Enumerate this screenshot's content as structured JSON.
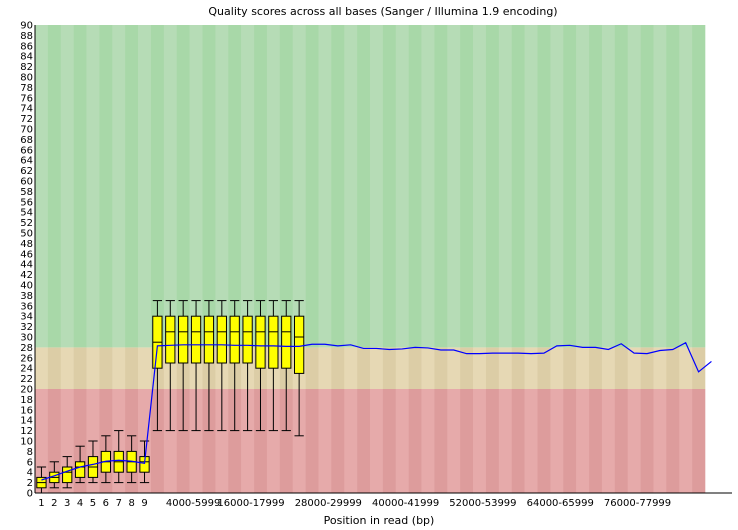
{
  "chart_data": {
    "type": "box",
    "title": "Quality scores across all bases (Sanger / Illumina 1.9 encoding)",
    "xlabel": "Position in read (bp)",
    "ylabel": "",
    "ylim": [
      0,
      90
    ],
    "y_ticks": [
      0,
      2,
      4,
      6,
      8,
      10,
      12,
      14,
      16,
      18,
      20,
      22,
      24,
      26,
      28,
      30,
      32,
      34,
      36,
      38,
      40,
      42,
      44,
      46,
      48,
      50,
      52,
      54,
      56,
      58,
      60,
      62,
      64,
      66,
      68,
      70,
      72,
      74,
      76,
      78,
      80,
      82,
      84,
      86,
      88,
      90
    ],
    "x_tick_labels": [
      "1",
      "2",
      "3",
      "4",
      "5",
      "6",
      "7",
      "8",
      "9",
      "4000-5999",
      "16000-17999",
      "28000-29999",
      "40000-41999",
      "52000-53999",
      "64000-65999",
      "76000-77999"
    ],
    "x_tick_slots": [
      0,
      1,
      2,
      3,
      4,
      5,
      6,
      7,
      8,
      10,
      14,
      20,
      26,
      32,
      38,
      44
    ],
    "n_positions": 52,
    "quality_bands": [
      {
        "from": 0,
        "to": 20,
        "label": "poor",
        "color_a": "#e6aaaa",
        "color_b": "#dd9c9c"
      },
      {
        "from": 20,
        "to": 28,
        "label": "reasonable",
        "color_a": "#e6d8b4",
        "color_b": "#dccda6"
      },
      {
        "from": 28,
        "to": 90,
        "label": "good",
        "color_a": "#b6dcb6",
        "color_b": "#a8d8a8"
      }
    ],
    "colors": {
      "box": "#ffff00",
      "median": "#000000",
      "mean_line": "#0000ff",
      "whisker": "#000000"
    },
    "boxes": [
      {
        "pos": 0,
        "low": 0,
        "q1": 1,
        "median": 2,
        "q3": 3,
        "high": 5
      },
      {
        "pos": 1,
        "low": 1,
        "q1": 2,
        "median": 3,
        "q3": 4,
        "high": 6
      },
      {
        "pos": 2,
        "low": 1,
        "q1": 2,
        "median": 4,
        "q3": 5,
        "high": 7
      },
      {
        "pos": 3,
        "low": 2,
        "q1": 3,
        "median": 5,
        "q3": 6,
        "high": 9
      },
      {
        "pos": 4,
        "low": 2,
        "q1": 3,
        "median": 5,
        "q3": 7,
        "high": 10
      },
      {
        "pos": 5,
        "low": 2,
        "q1": 4,
        "median": 6,
        "q3": 8,
        "high": 11
      },
      {
        "pos": 6,
        "low": 2,
        "q1": 4,
        "median": 6,
        "q3": 8,
        "high": 12
      },
      {
        "pos": 7,
        "low": 2,
        "q1": 4,
        "median": 6,
        "q3": 8,
        "high": 11
      },
      {
        "pos": 8,
        "low": 2,
        "q1": 4,
        "median": 6,
        "q3": 7,
        "high": 10
      },
      {
        "pos": 9,
        "low": 12,
        "q1": 24,
        "median": 29,
        "q3": 34,
        "high": 37
      },
      {
        "pos": 10,
        "low": 12,
        "q1": 25,
        "median": 31,
        "q3": 34,
        "high": 37
      },
      {
        "pos": 11,
        "low": 12,
        "q1": 25,
        "median": 31,
        "q3": 34,
        "high": 37
      },
      {
        "pos": 12,
        "low": 12,
        "q1": 25,
        "median": 31,
        "q3": 34,
        "high": 37
      },
      {
        "pos": 13,
        "low": 12,
        "q1": 25,
        "median": 31,
        "q3": 34,
        "high": 37
      },
      {
        "pos": 14,
        "low": 12,
        "q1": 25,
        "median": 31,
        "q3": 34,
        "high": 37
      },
      {
        "pos": 15,
        "low": 12,
        "q1": 25,
        "median": 31,
        "q3": 34,
        "high": 37
      },
      {
        "pos": 16,
        "low": 12,
        "q1": 25,
        "median": 31,
        "q3": 34,
        "high": 37
      },
      {
        "pos": 17,
        "low": 12,
        "q1": 24,
        "median": 31,
        "q3": 34,
        "high": 37
      },
      {
        "pos": 18,
        "low": 12,
        "q1": 24,
        "median": 31,
        "q3": 34,
        "high": 37
      },
      {
        "pos": 19,
        "low": 12,
        "q1": 24,
        "median": 31,
        "q3": 34,
        "high": 37
      },
      {
        "pos": 20,
        "low": 11,
        "q1": 23,
        "median": 30,
        "q3": 34,
        "high": 37
      }
    ],
    "mean": [
      2.5,
      3.3,
      4.2,
      5,
      5.5,
      6.1,
      6.3,
      6.1,
      5.7,
      28.3,
      28.4,
      28.5,
      28.5,
      28.5,
      28.5,
      28.4,
      28.4,
      28.3,
      28.3,
      28.2,
      28.2,
      28.6,
      28.6,
      28.3,
      28.5,
      27.8,
      27.8,
      27.6,
      27.7,
      28,
      27.9,
      27.5,
      27.5,
      26.8,
      26.8,
      26.9,
      26.9,
      26.9,
      26.8,
      26.9,
      28.3,
      28.4,
      28,
      28,
      27.6,
      28.7,
      26.9,
      26.8,
      27.4,
      27.6,
      28.9,
      23.3,
      25.3
    ],
    "mean_x": [
      0,
      1,
      2,
      3,
      4,
      5,
      6,
      7,
      8,
      9,
      10,
      11,
      12,
      13,
      14,
      15,
      16,
      17,
      18,
      19,
      20,
      21,
      22,
      23,
      24,
      25,
      26,
      27,
      28,
      29,
      30,
      31,
      32,
      33,
      34,
      35,
      36,
      37,
      38,
      39,
      40,
      41,
      42,
      43,
      44,
      45,
      46,
      47,
      48,
      49,
      50,
      51,
      52
    ]
  }
}
